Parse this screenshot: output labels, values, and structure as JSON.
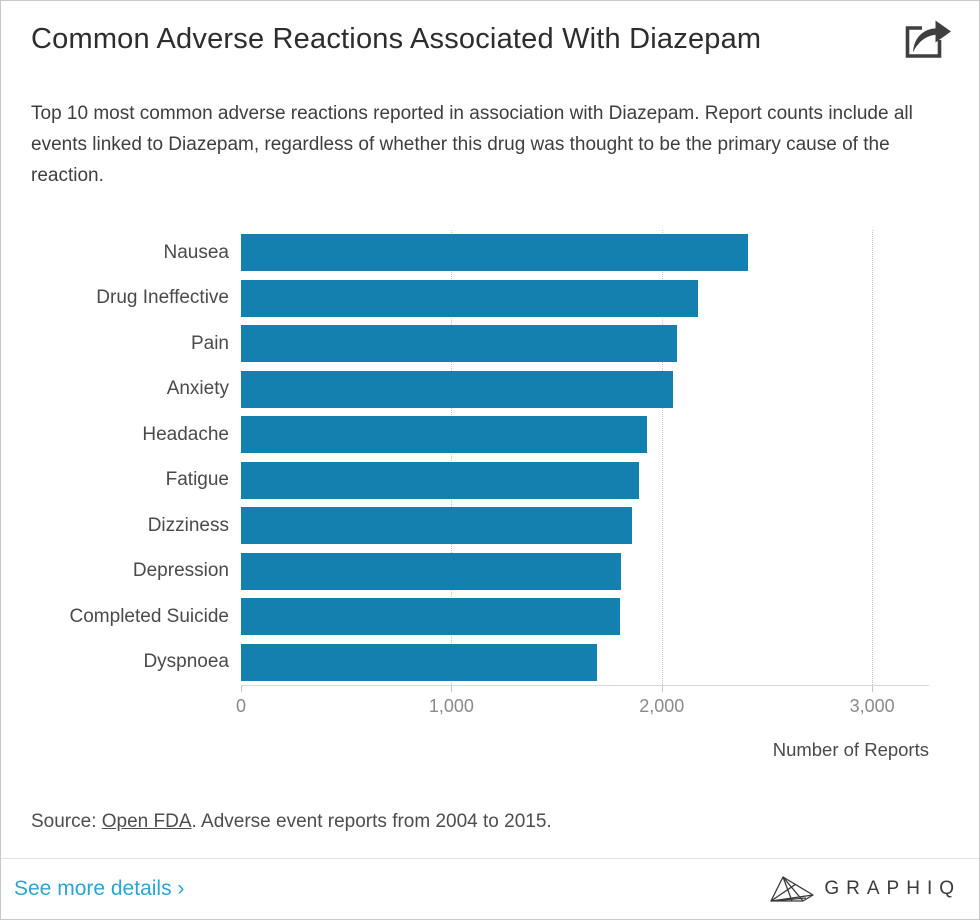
{
  "header": {
    "title": "Common Adverse Reactions Associated With Diazepam"
  },
  "subtitle": "Top 10 most common adverse reactions reported in association with Diazepam. Report counts include all events linked to Diazepam, regardless of whether this drug was thought to be the primary cause of the reaction.",
  "chart_data": {
    "type": "bar",
    "orientation": "horizontal",
    "title": "Common Adverse Reactions Associated With Diazepam",
    "categories": [
      "Nausea",
      "Drug Ineffective",
      "Pain",
      "Anxiety",
      "Headache",
      "Fatigue",
      "Dizziness",
      "Depression",
      "Completed Suicide",
      "Dyspnoea"
    ],
    "values": [
      2410,
      2170,
      2070,
      2055,
      1930,
      1890,
      1860,
      1805,
      1800,
      1690
    ],
    "xlabel": "Number of Reports",
    "ylabel": "",
    "x_ticks": [
      "0",
      "1,000",
      "2,000",
      "3,000"
    ],
    "x_tick_values": [
      0,
      1000,
      2000,
      3000
    ],
    "xlim": [
      0,
      3270
    ],
    "grid": "dotted-vertical-behind-bars",
    "legend": "none",
    "bar_color": "#1480AF",
    "sort": "descending"
  },
  "source": {
    "prefix": "Source: ",
    "link_text": "Open FDA",
    "suffix": ". Adverse event reports from 2004 to 2015."
  },
  "footer": {
    "details_link": "See more details ›",
    "brand": "GRAPHIQ"
  },
  "colors": {
    "bar": "#1480AF",
    "details_link": "#2BA6D1",
    "title_text": "#2d2d2d",
    "body_text": "#3e3e3e",
    "tick_text": "#8a8a8a",
    "divider": "#e2e2e2",
    "gridline": "#c6c6c6"
  }
}
